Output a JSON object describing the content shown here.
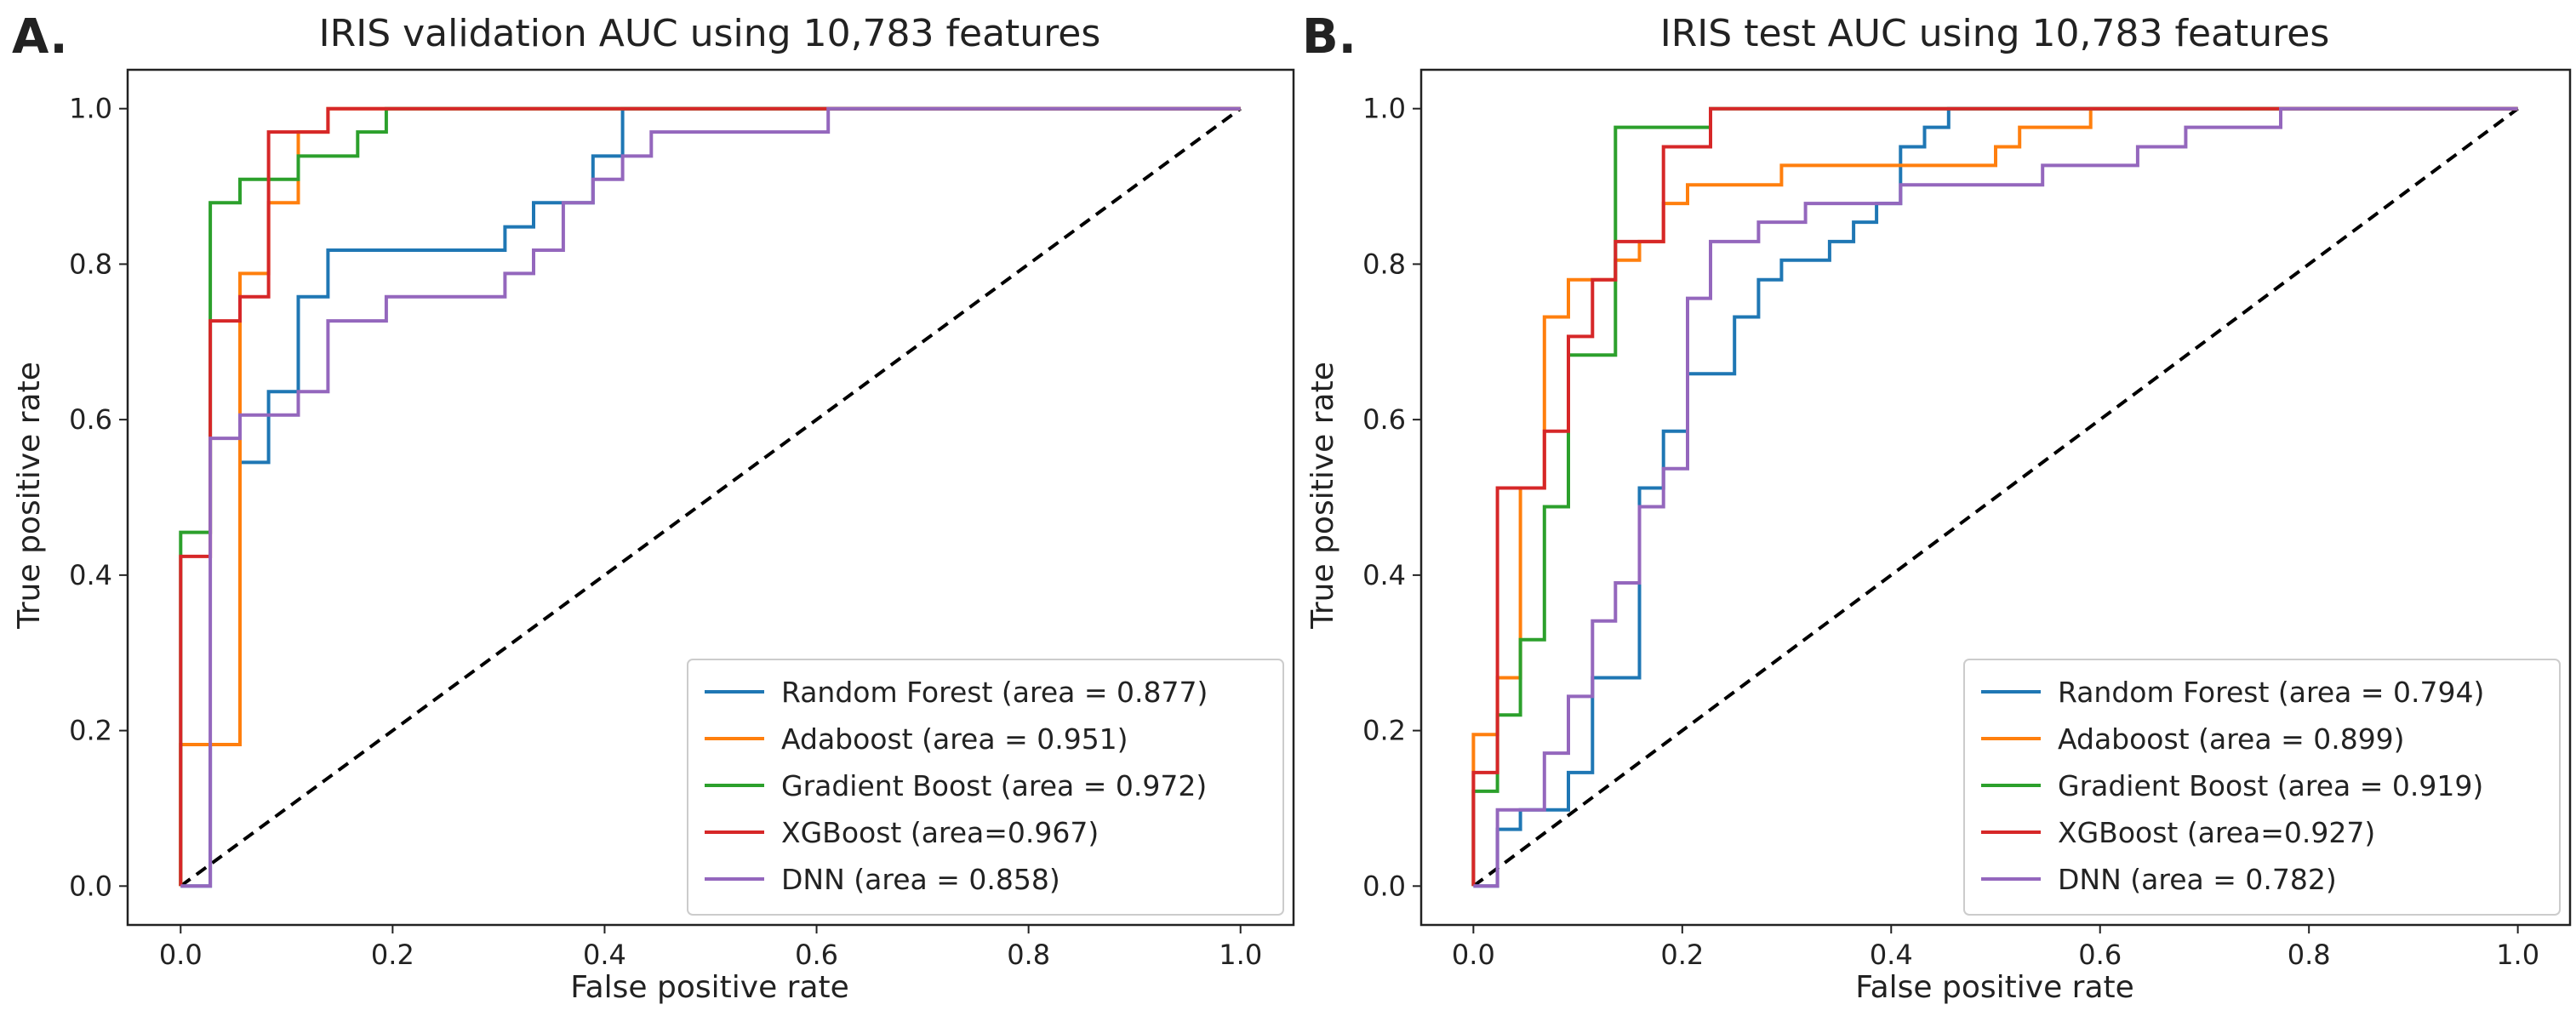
{
  "chart_data": [
    {
      "type": "line",
      "panel": "A.",
      "title": "IRIS validation AUC using 10,783 features",
      "xlabel": "False positive rate",
      "ylabel": "True positive rate",
      "xlim": [
        -0.05,
        1.05
      ],
      "ylim": [
        -0.05,
        1.05
      ],
      "xticks": [
        "0.0",
        "0.2",
        "0.4",
        "0.6",
        "0.8",
        "1.0"
      ],
      "yticks": [
        "0.0",
        "0.2",
        "0.4",
        "0.6",
        "0.8",
        "1.0"
      ],
      "legend_position": "lower-right",
      "diagonal": {
        "x": [
          0,
          1
        ],
        "y": [
          0,
          1
        ],
        "color": "#000000",
        "style": "dashed"
      },
      "series": [
        {
          "name": "Random Forest (area = 0.877)",
          "color": "#1f77b4",
          "x": [
            0,
            0.028,
            0.028,
            0.056,
            0.056,
            0.083,
            0.083,
            0.083,
            0.083,
            0.111,
            0.111,
            0.139,
            0.139,
            0.306,
            0.306,
            0.333,
            0.333,
            0.389,
            0.389,
            0.417,
            0.417,
            1.0
          ],
          "y": [
            0,
            0,
            0.182,
            0.182,
            0.545,
            0.545,
            0.606,
            0.636,
            0.636,
            0.636,
            0.758,
            0.758,
            0.818,
            0.818,
            0.848,
            0.848,
            0.879,
            0.879,
            0.939,
            0.939,
            1.0,
            1.0
          ]
        },
        {
          "name": "Adaboost (area = 0.951)",
          "color": "#ff7f0e",
          "x": [
            0,
            0,
            0.056,
            0.056,
            0.056,
            0.083,
            0.083,
            0.083,
            0.111,
            0.111,
            0.139,
            0.139,
            0.167,
            0.167,
            1.0
          ],
          "y": [
            0,
            0.182,
            0.182,
            0.424,
            0.788,
            0.788,
            0.848,
            0.879,
            0.879,
            0.97,
            0.97,
            1.0,
            1.0,
            1.0,
            1.0
          ],
          "simplified": true
        },
        {
          "name": "Gradient Boost (area = 0.972)",
          "color": "#2ca02c",
          "x": [
            0,
            0,
            0.028,
            0.028,
            0.056,
            0.056,
            0.111,
            0.111,
            0.167,
            0.167,
            0.194,
            0.194,
            1.0
          ],
          "y": [
            0,
            0.455,
            0.455,
            0.879,
            0.879,
            0.909,
            0.909,
            0.939,
            0.939,
            0.97,
            0.97,
            1.0,
            1.0
          ]
        },
        {
          "name": "XGBoost (area=0.967)",
          "color": "#d62728",
          "x": [
            0,
            0,
            0.028,
            0.028,
            0.056,
            0.056,
            0.083,
            0.083,
            0.083,
            0.083,
            0.139,
            0.139,
            1.0
          ],
          "y": [
            0,
            0.424,
            0.424,
            0.727,
            0.727,
            0.758,
            0.758,
            0.97,
            0.97,
            0.97,
            0.97,
            1.0,
            1.0
          ]
        },
        {
          "name": "DNN (area = 0.858)",
          "color": "#9467bd",
          "x": [
            0,
            0.028,
            0.028,
            0.056,
            0.056,
            0.111,
            0.111,
            0.139,
            0.139,
            0.194,
            0.194,
            0.306,
            0.306,
            0.333,
            0.333,
            0.361,
            0.361,
            0.389,
            0.389,
            0.417,
            0.417,
            0.444,
            0.444,
            0.5,
            0.5,
            0.611,
            0.611,
            1.0
          ],
          "y": [
            0,
            0,
            0.576,
            0.576,
            0.606,
            0.606,
            0.636,
            0.636,
            0.727,
            0.727,
            0.758,
            0.758,
            0.788,
            0.788,
            0.818,
            0.818,
            0.879,
            0.879,
            0.909,
            0.909,
            0.939,
            0.939,
            0.97,
            0.97,
            0.97,
            0.97,
            1.0,
            1.0
          ]
        }
      ]
    },
    {
      "type": "line",
      "panel": "B.",
      "title": "IRIS test AUC using 10,783 features",
      "xlabel": "False positive rate",
      "ylabel": "True positive rate",
      "xlim": [
        -0.05,
        1.05
      ],
      "ylim": [
        -0.05,
        1.05
      ],
      "xticks": [
        "0.0",
        "0.2",
        "0.4",
        "0.6",
        "0.8",
        "1.0"
      ],
      "yticks": [
        "0.0",
        "0.2",
        "0.4",
        "0.6",
        "0.8",
        "1.0"
      ],
      "legend_position": "lower-right",
      "diagonal": {
        "x": [
          0,
          1
        ],
        "y": [
          0,
          1
        ],
        "color": "#000000",
        "style": "dashed"
      },
      "series": [
        {
          "name": "Random Forest (area = 0.794)",
          "color": "#1f77b4",
          "x": [
            0,
            0.023,
            0.023,
            0.045,
            0.045,
            0.091,
            0.091,
            0.114,
            0.114,
            0.159,
            0.159,
            0.182,
            0.182,
            0.205,
            0.205,
            0.25,
            0.25,
            0.273,
            0.273,
            0.295,
            0.295,
            0.341,
            0.341,
            0.364,
            0.364,
            0.386,
            0.386,
            0.409,
            0.409,
            0.432,
            0.432,
            0.455,
            0.455,
            1.0
          ],
          "y": [
            0,
            0,
            0.073,
            0.073,
            0.098,
            0.098,
            0.146,
            0.146,
            0.268,
            0.268,
            0.512,
            0.512,
            0.585,
            0.585,
            0.659,
            0.659,
            0.732,
            0.732,
            0.78,
            0.78,
            0.805,
            0.805,
            0.829,
            0.829,
            0.854,
            0.854,
            0.878,
            0.878,
            0.951,
            0.951,
            0.976,
            0.976,
            1.0,
            1.0
          ]
        },
        {
          "name": "Adaboost (area = 0.899)",
          "color": "#ff7f0e",
          "x": [
            0,
            0,
            0.023,
            0.023,
            0.045,
            0.045,
            0.068,
            0.068,
            0.091,
            0.091,
            0.136,
            0.136,
            0.159,
            0.159,
            0.182,
            0.182,
            0.205,
            0.205,
            0.227,
            0.227,
            0.295,
            0.295,
            0.5,
            0.5,
            0.523,
            0.523,
            0.591,
            0.591,
            1.0
          ],
          "y": [
            0,
            0.195,
            0.195,
            0.268,
            0.268,
            0.512,
            0.512,
            0.732,
            0.732,
            0.78,
            0.78,
            0.805,
            0.805,
            0.829,
            0.829,
            0.878,
            0.878,
            0.902,
            0.902,
            0.902,
            0.902,
            0.927,
            0.927,
            0.951,
            0.951,
            0.976,
            0.976,
            1.0,
            1.0
          ]
        },
        {
          "name": "Gradient Boost (area = 0.919)",
          "color": "#2ca02c",
          "x": [
            0,
            0,
            0.023,
            0.023,
            0.045,
            0.045,
            0.068,
            0.068,
            0.091,
            0.091,
            0.136,
            0.136,
            0.182,
            0.182,
            0.227,
            0.227,
            1.0
          ],
          "y": [
            0,
            0.122,
            0.122,
            0.22,
            0.22,
            0.317,
            0.317,
            0.488,
            0.488,
            0.683,
            0.683,
            0.976,
            0.976,
            0.976,
            0.976,
            1.0,
            1.0
          ]
        },
        {
          "name": "XGBoost (area=0.927)",
          "color": "#d62728",
          "x": [
            0,
            0,
            0.023,
            0.023,
            0.068,
            0.068,
            0.091,
            0.091,
            0.114,
            0.114,
            0.136,
            0.136,
            0.182,
            0.182,
            0.227,
            0.227,
            0.841,
            0.841,
            1.0
          ],
          "y": [
            0,
            0.146,
            0.146,
            0.512,
            0.512,
            0.585,
            0.585,
            0.707,
            0.707,
            0.78,
            0.78,
            0.829,
            0.829,
            0.951,
            0.951,
            1.0,
            1.0,
            1.0,
            1.0
          ]
        },
        {
          "name": "DNN (area = 0.782)",
          "color": "#9467bd",
          "x": [
            0,
            0.023,
            0.023,
            0.068,
            0.068,
            0.091,
            0.091,
            0.114,
            0.114,
            0.136,
            0.136,
            0.159,
            0.159,
            0.182,
            0.182,
            0.205,
            0.205,
            0.227,
            0.227,
            0.273,
            0.273,
            0.318,
            0.318,
            0.409,
            0.409,
            0.545,
            0.545,
            0.636,
            0.636,
            0.682,
            0.682,
            0.727,
            0.727,
            0.773,
            0.773,
            0.841,
            0.841,
            1.0
          ],
          "y": [
            0,
            0,
            0.098,
            0.098,
            0.171,
            0.171,
            0.244,
            0.244,
            0.341,
            0.341,
            0.39,
            0.39,
            0.488,
            0.488,
            0.537,
            0.537,
            0.756,
            0.756,
            0.829,
            0.829,
            0.854,
            0.854,
            0.878,
            0.878,
            0.902,
            0.902,
            0.927,
            0.927,
            0.951,
            0.951,
            0.976,
            0.976,
            0.976,
            0.976,
            1.0,
            1.0,
            1.0,
            1.0
          ]
        }
      ]
    }
  ]
}
